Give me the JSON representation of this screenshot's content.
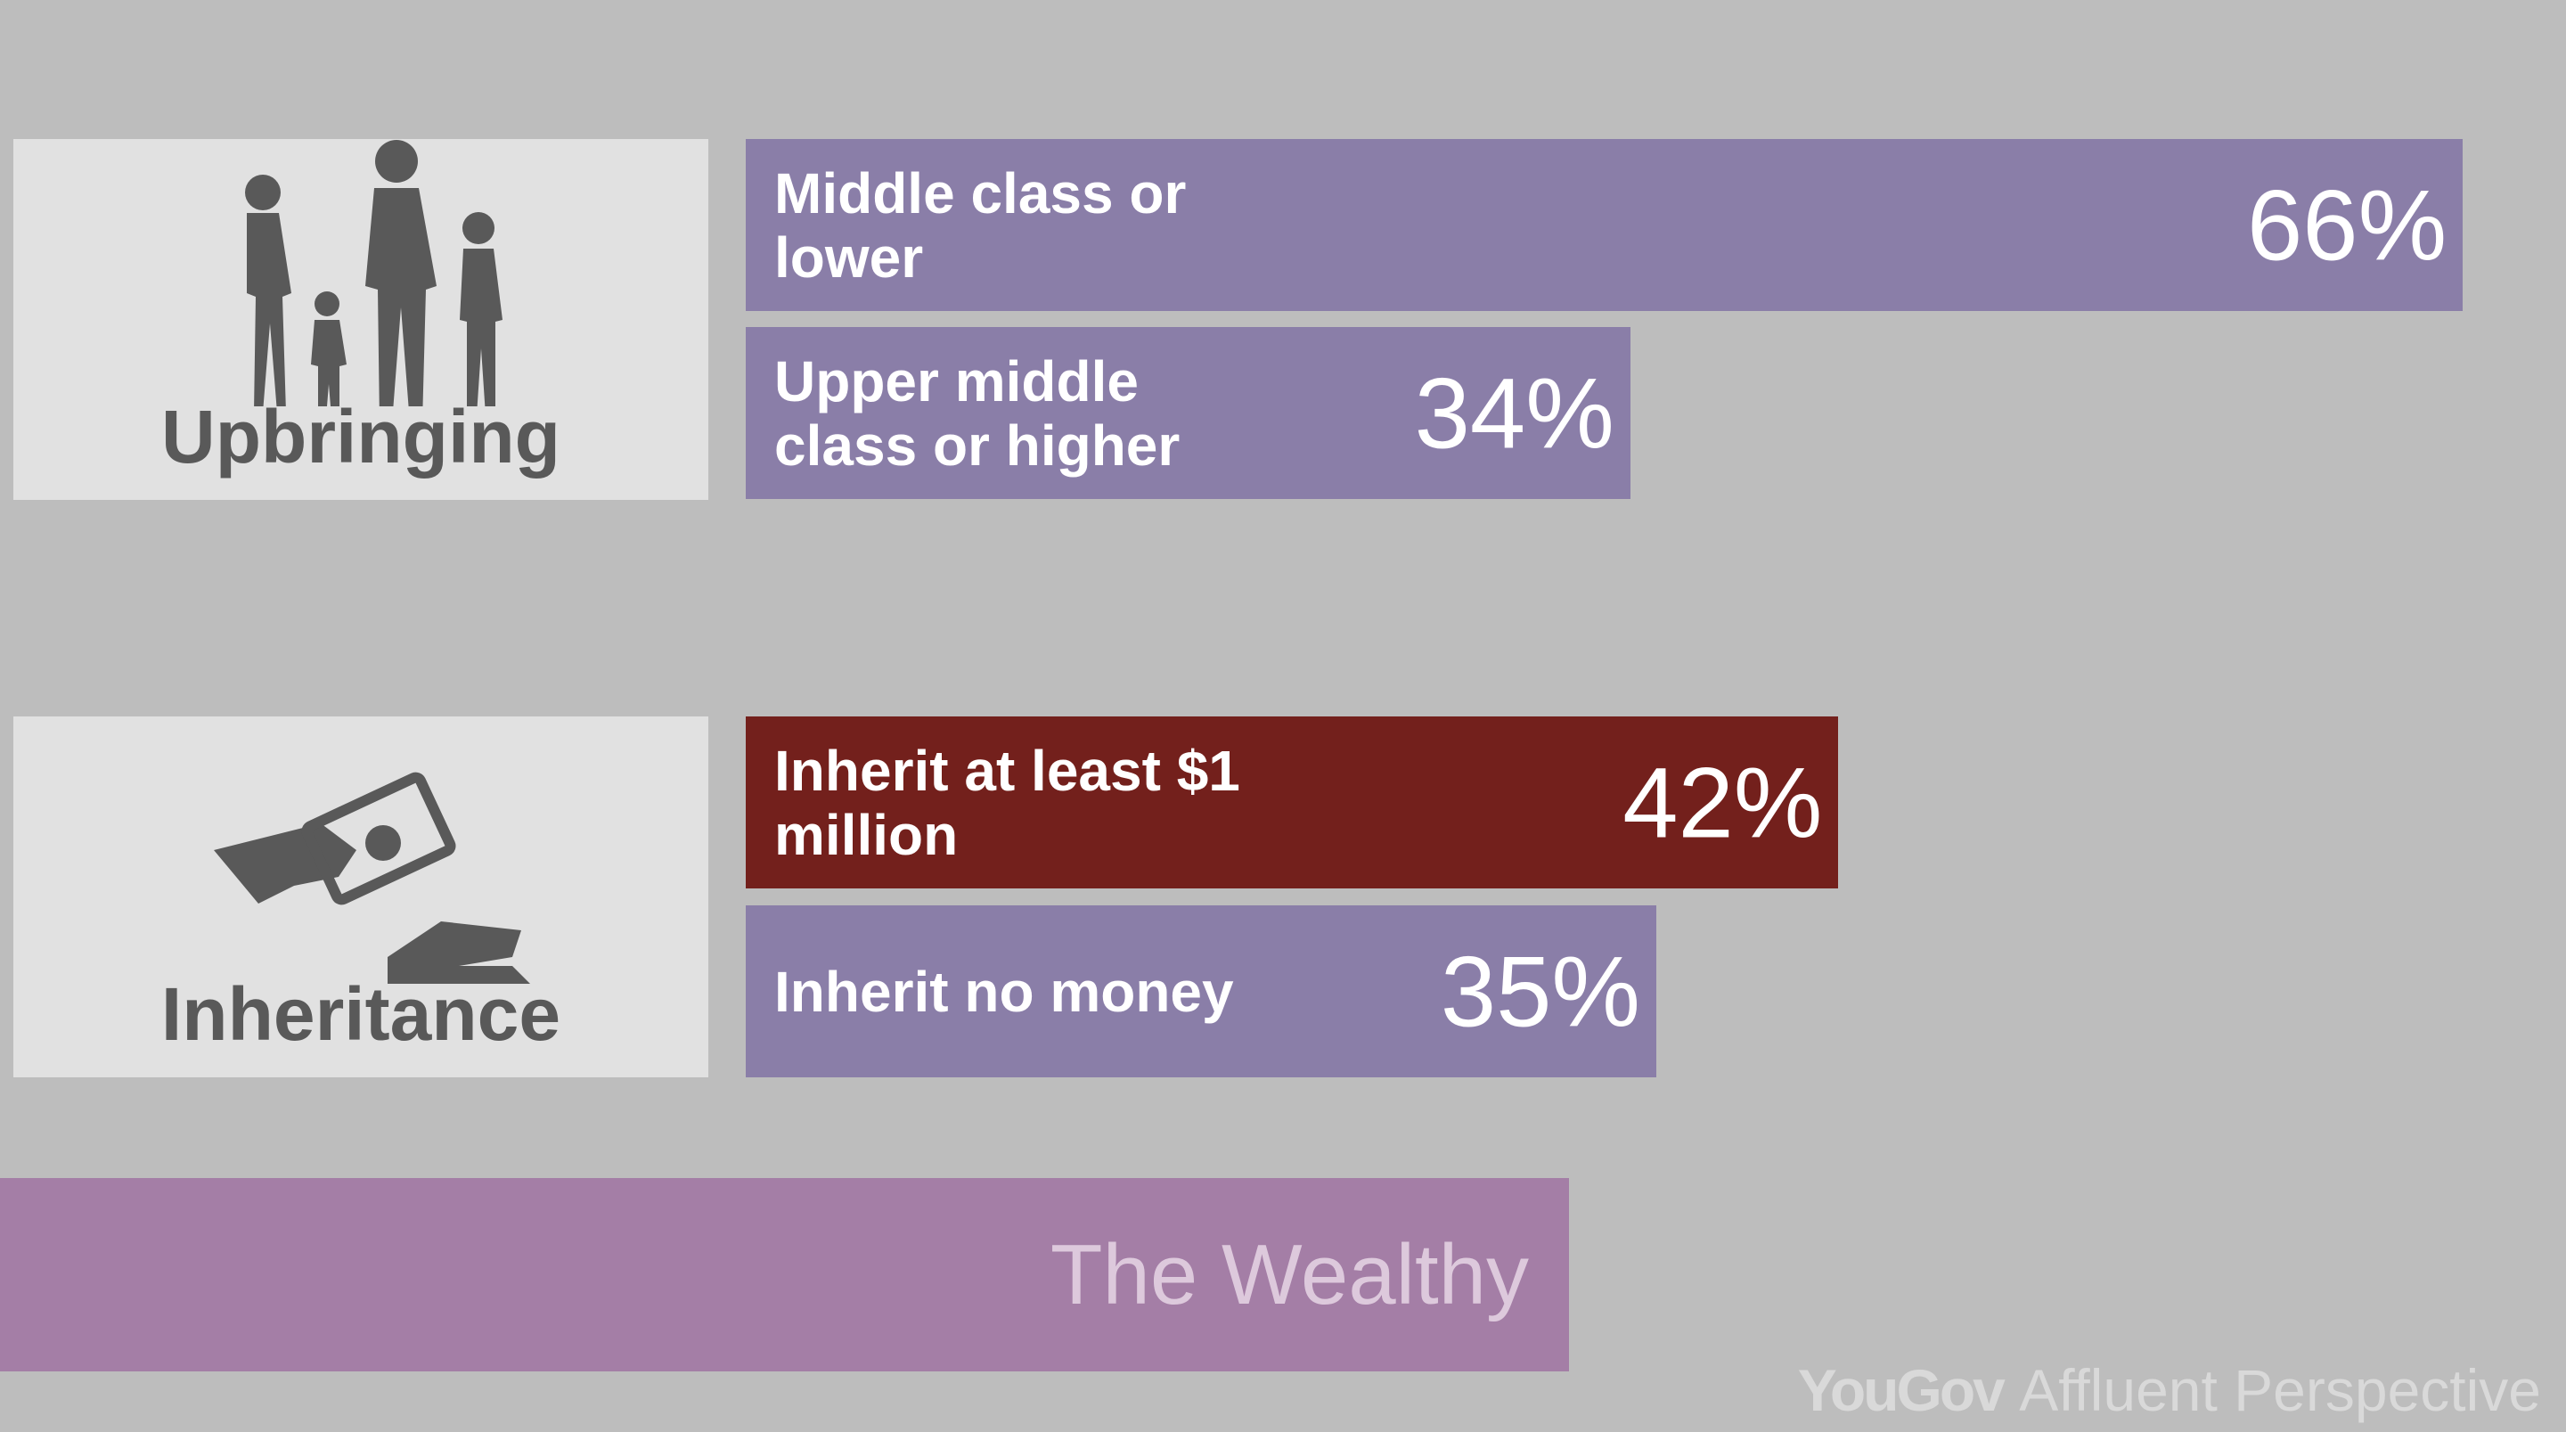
{
  "chart_data": [
    {
      "type": "hbar",
      "title": "Upbringing",
      "icon": "family",
      "categories": [
        "Middle class or lower",
        "Upper middle class or higher"
      ],
      "values": [
        66,
        34
      ],
      "value_labels": [
        "66%",
        "34%"
      ],
      "colors": [
        "#8a7ea8",
        "#8a7ea8"
      ]
    },
    {
      "type": "hbar",
      "title": "Inheritance",
      "icon": "money",
      "categories": [
        "Inherit at least $1 million",
        "Inherit no money"
      ],
      "values": [
        42,
        35
      ],
      "value_labels": [
        "42%",
        "35%"
      ],
      "colors": [
        "#73201c",
        "#8a7ea8"
      ]
    }
  ],
  "banner": "The Wealthy",
  "footer": {
    "brand": "YouGov",
    "tagline": "Affluent Perspective"
  }
}
